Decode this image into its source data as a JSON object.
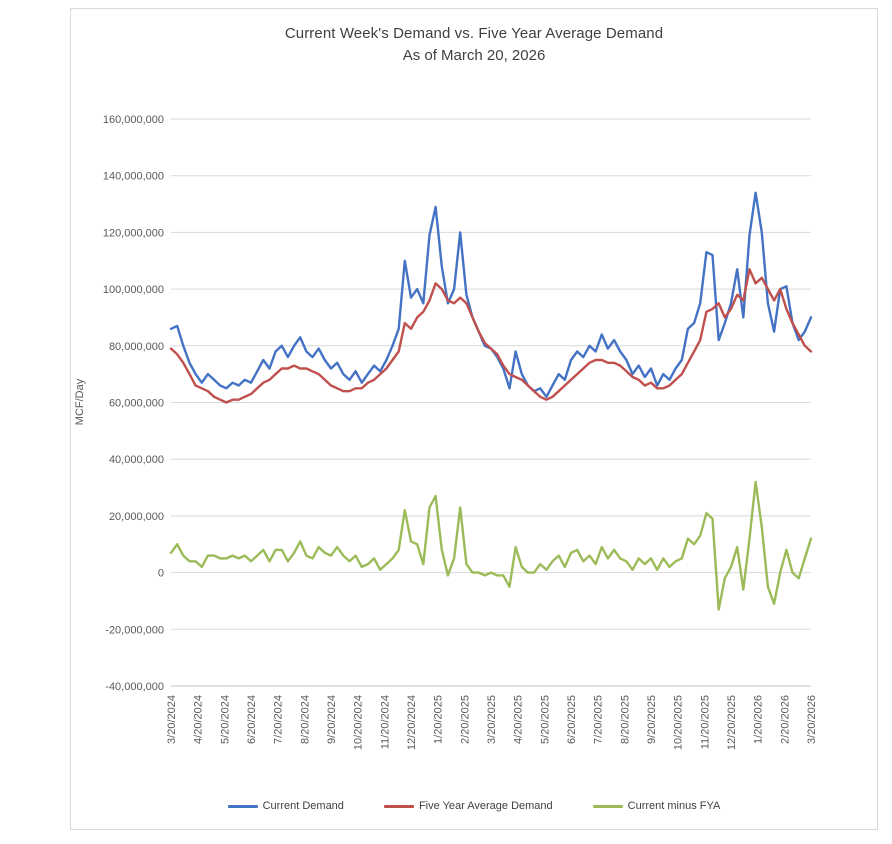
{
  "colors": {
    "gridline": "#d9d9d9",
    "axis_line": "#bfbfbf",
    "tick_text": "#595959",
    "title_text": "#404040",
    "frame_border": "#d9d9d9",
    "background": "#ffffff"
  },
  "chart_data": {
    "type": "line",
    "title": "Current Week's Demand vs. Five Year Average Demand",
    "subtitle": "As of March 20, 2026",
    "xlabel": "",
    "ylabel": "MCF/Day",
    "ylim": [
      -40000000,
      160000000
    ],
    "ytick_step": 20000000,
    "grid": true,
    "legend_position": "bottom",
    "value_unit": "MCF/Day",
    "value_multiplier": 1000000,
    "x_tick_labels": [
      "3/20/2024",
      "4/20/2024",
      "5/20/2024",
      "6/20/2024",
      "7/20/2024",
      "8/20/2024",
      "9/20/2024",
      "10/20/2024",
      "11/20/2024",
      "12/20/2024",
      "1/20/2025",
      "2/20/2025",
      "3/20/2025",
      "4/20/2025",
      "5/20/2025",
      "6/20/2025",
      "7/20/2025",
      "8/20/2025",
      "9/20/2025",
      "10/20/2025",
      "11/20/2025",
      "12/20/2025",
      "1/20/2026",
      "2/20/2026",
      "3/20/2026"
    ],
    "series": [
      {
        "name": "Current Demand",
        "color": "#4472C4",
        "values": [
          86,
          87,
          80,
          74,
          70,
          67,
          70,
          68,
          66,
          65,
          67,
          66,
          68,
          67,
          71,
          75,
          72,
          78,
          80,
          76,
          80,
          83,
          78,
          76,
          79,
          75,
          72,
          74,
          70,
          68,
          71,
          67,
          70,
          73,
          71,
          75,
          80,
          86,
          110,
          97,
          100,
          95,
          119,
          129,
          108,
          95,
          100,
          120,
          98,
          90,
          85,
          80,
          79,
          76,
          72,
          65,
          78,
          70,
          66,
          64,
          65,
          62,
          66,
          70,
          68,
          75,
          78,
          76,
          80,
          78,
          84,
          79,
          82,
          78,
          75,
          70,
          73,
          69,
          72,
          66,
          70,
          68,
          72,
          75,
          86,
          88,
          95,
          113,
          112,
          82,
          88,
          95,
          107,
          90,
          119,
          134,
          120,
          95,
          85,
          100,
          101,
          88,
          82,
          85,
          90
        ]
      },
      {
        "name": "Five Year Average Demand",
        "color": "#C0504D",
        "values": [
          79,
          77,
          74,
          70,
          66,
          65,
          64,
          62,
          61,
          60,
          61,
          61,
          62,
          63,
          65,
          67,
          68,
          70,
          72,
          72,
          73,
          72,
          72,
          71,
          70,
          68,
          66,
          65,
          64,
          64,
          65,
          65,
          67,
          68,
          70,
          72,
          75,
          78,
          88,
          86,
          90,
          92,
          96,
          102,
          100,
          96,
          95,
          97,
          95,
          90,
          85,
          81,
          79,
          77,
          73,
          70,
          69,
          68,
          66,
          64,
          62,
          61,
          62,
          64,
          66,
          68,
          70,
          72,
          74,
          75,
          75,
          74,
          74,
          73,
          71,
          69,
          68,
          66,
          67,
          65,
          65,
          66,
          68,
          70,
          74,
          78,
          82,
          92,
          93,
          95,
          90,
          93,
          98,
          96,
          107,
          102,
          104,
          100,
          96,
          100,
          93,
          88,
          84,
          80,
          78
        ]
      },
      {
        "name": "Current minus FYA",
        "color": "#9BBB59",
        "values": [
          7,
          10,
          6,
          4,
          4,
          2,
          6,
          6,
          5,
          5,
          6,
          5,
          6,
          4,
          6,
          8,
          4,
          8,
          8,
          4,
          7,
          11,
          6,
          5,
          9,
          7,
          6,
          9,
          6,
          4,
          6,
          2,
          3,
          5,
          1,
          3,
          5,
          8,
          22,
          11,
          10,
          3,
          23,
          27,
          8,
          -1,
          5,
          23,
          3,
          0,
          0,
          -1,
          0,
          -1,
          -1,
          -5,
          9,
          2,
          0,
          0,
          3,
          1,
          4,
          6,
          2,
          7,
          8,
          4,
          6,
          3,
          9,
          5,
          8,
          5,
          4,
          1,
          5,
          3,
          5,
          1,
          5,
          2,
          4,
          5,
          12,
          10,
          13,
          21,
          19,
          -13,
          -2,
          2,
          9,
          -6,
          12,
          32,
          16,
          -5,
          -11,
          0,
          8,
          0,
          -2,
          5,
          12
        ]
      }
    ]
  }
}
